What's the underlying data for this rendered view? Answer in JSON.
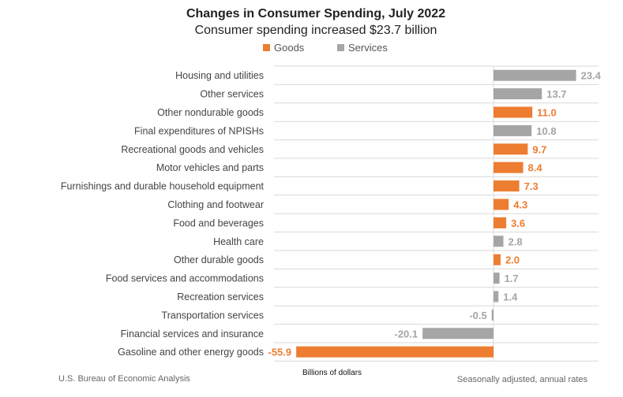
{
  "chart_data": {
    "type": "bar",
    "orientation": "horizontal",
    "title": "Changes in Consumer Spending, July 2022",
    "subtitle": "Consumer spending increased $23.7 billion",
    "xlabel": "Billions of dollars",
    "ylabel": "",
    "xlim": [
      -60,
      30
    ],
    "grid": true,
    "legend_position": "top",
    "legend": [
      {
        "name": "Goods",
        "color": "#ED7D31"
      },
      {
        "name": "Services",
        "color": "#A5A5A5"
      }
    ],
    "categories": [
      "Housing and utilities",
      "Other services",
      "Other nondurable goods",
      "Final expenditures of NPISHs",
      "Recreational goods and vehicles",
      "Motor vehicles and parts",
      "Furnishings and durable household equipment",
      "Clothing and footwear",
      "Food and beverages",
      "Health care",
      "Other durable goods",
      "Food services and accommodations",
      "Recreation services",
      "Transportation services",
      "Financial services and insurance",
      "Gasoline and other energy goods"
    ],
    "values": [
      23.4,
      13.7,
      11.0,
      10.8,
      9.7,
      8.4,
      7.3,
      4.3,
      3.6,
      2.8,
      2.0,
      1.7,
      1.4,
      -0.5,
      -20.1,
      -55.9
    ],
    "value_labels": [
      "23.4",
      "13.7",
      "11.0",
      "10.8",
      "9.7",
      "8.4",
      "7.3",
      "4.3",
      "3.6",
      "2.8",
      "2.0",
      "1.7",
      "1.4",
      "-0.5",
      "-20.1",
      "-55.9"
    ],
    "series_of_category": [
      "Services",
      "Services",
      "Goods",
      "Services",
      "Goods",
      "Goods",
      "Goods",
      "Goods",
      "Goods",
      "Services",
      "Goods",
      "Services",
      "Services",
      "Services",
      "Services",
      "Goods"
    ]
  },
  "footer": {
    "source": "U.S. Bureau of Economic Analysis",
    "note": "Seasonally adjusted, annual rates"
  }
}
